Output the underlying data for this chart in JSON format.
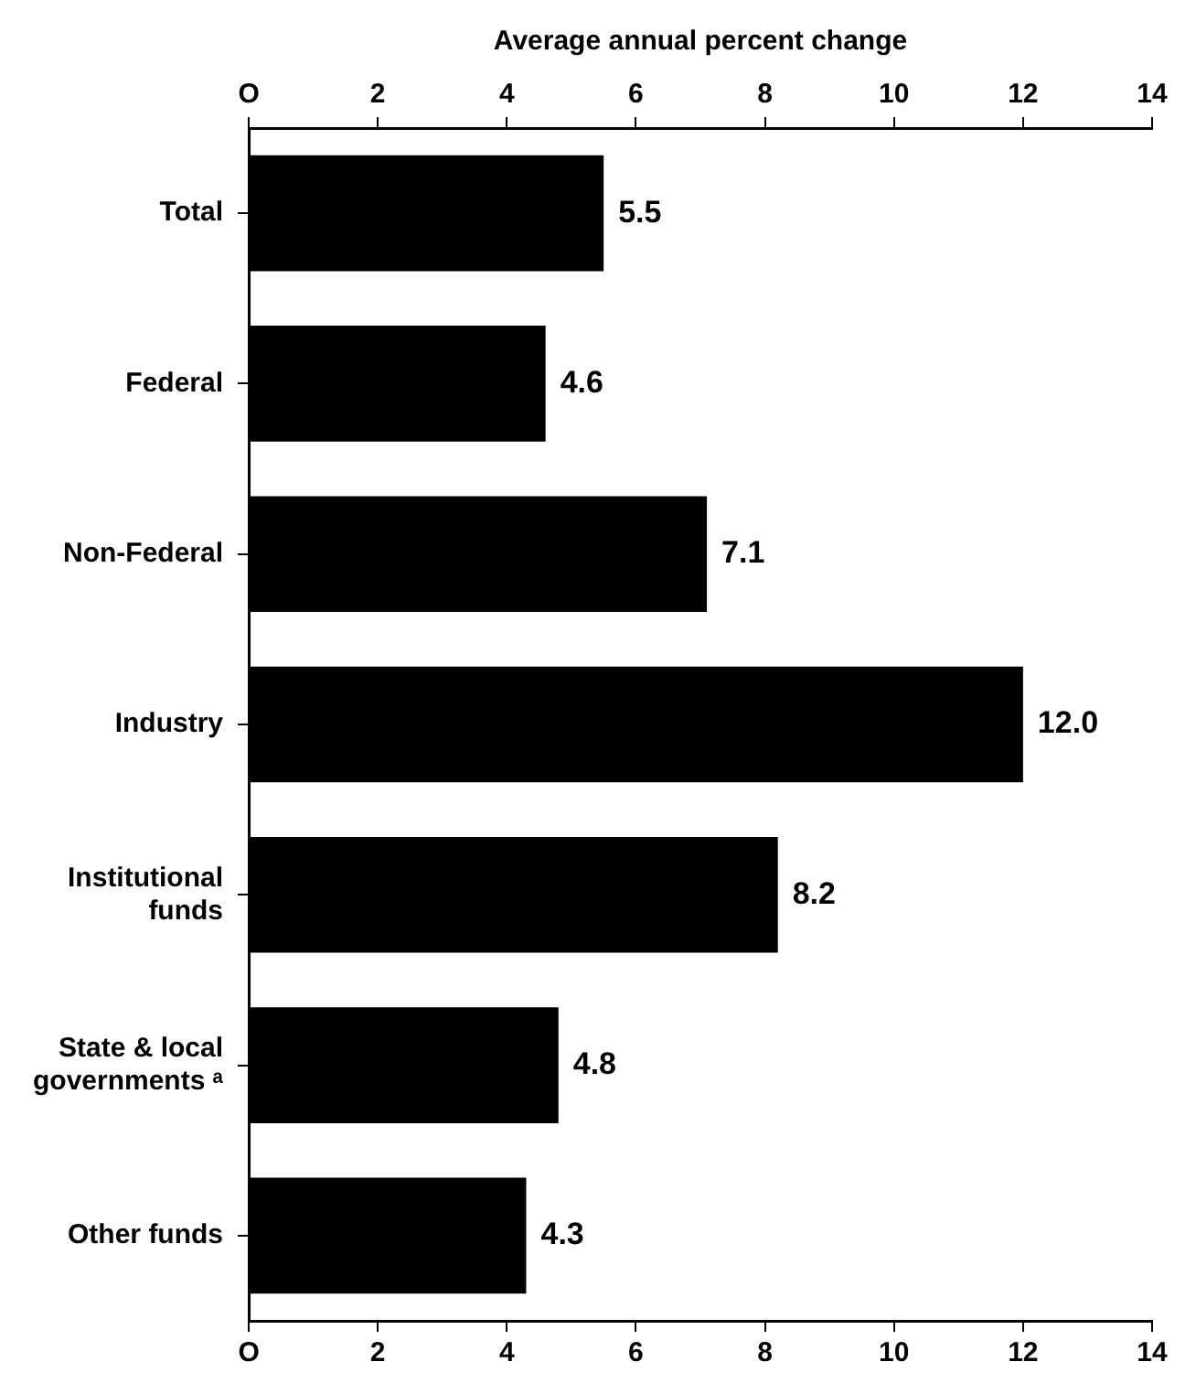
{
  "chart_data": {
    "type": "bar",
    "orientation": "horizontal",
    "x2label": "Average annual percent change",
    "categories": [
      "Total",
      "Federal",
      "Non-Federal",
      "Industry",
      "Institutional funds",
      "State & local governments ᵃ",
      "Other funds"
    ],
    "values": [
      5.5,
      4.6,
      7.1,
      12.0,
      8.2,
      4.8,
      4.3
    ],
    "color": "#000000",
    "value_labels": [
      "5.5",
      "4.6",
      "7.1",
      "12.0",
      "8.2",
      "4.8",
      "4.3"
    ],
    "xlim": [
      0,
      14
    ],
    "xticks": [
      {
        "value": 0,
        "label": "O"
      },
      2,
      4,
      6,
      8,
      10,
      12,
      14
    ],
    "x2lim": [
      0,
      14
    ],
    "x2ticks": [
      {
        "value": 0,
        "label": "O"
      },
      2,
      4,
      6,
      8,
      10,
      12,
      14
    ],
    "grid": false,
    "legend": false
  }
}
